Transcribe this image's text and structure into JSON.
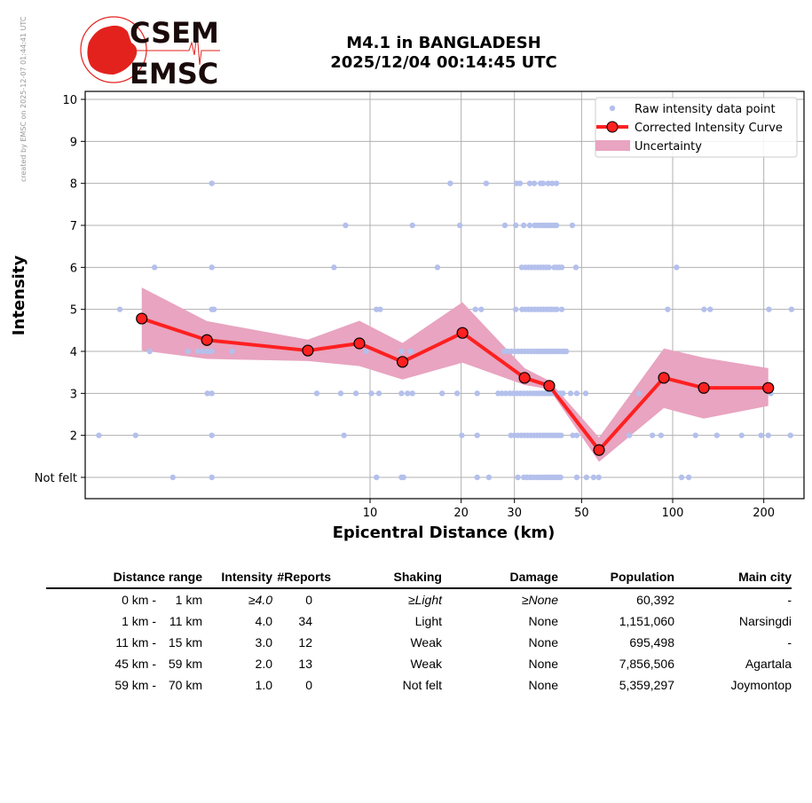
{
  "credit": "created by EMSC on 2025-12-07 01:44:41 UTC",
  "logo": {
    "line1": "CSEM",
    "line2": "EMSC"
  },
  "title": {
    "line1": "M4.1 in BANGLADESH",
    "line2": "2025/12/04 00:14:45 UTC"
  },
  "colors": {
    "raw": "#b4c0ec",
    "curve": "#ff2020",
    "uncertainty": "#e8a4c0",
    "logo": "#e3221e"
  },
  "chart_data": {
    "type": "line",
    "xlabel": "Epicentral Distance (km)",
    "ylabel": "Intensity",
    "xscale": "log",
    "xlim": [
      1.15,
      271
    ],
    "ylim": [
      0.5,
      10.2
    ],
    "xticks": [
      {
        "v": 10,
        "l": "10"
      },
      {
        "v": 20,
        "l": "20"
      },
      {
        "v": 30,
        "l": "30"
      },
      {
        "v": 50,
        "l": "50"
      },
      {
        "v": 100,
        "l": "100"
      },
      {
        "v": 200,
        "l": "200"
      }
    ],
    "yticks": [
      {
        "v": 1,
        "l": "Not felt"
      },
      {
        "v": 2,
        "l": "2"
      },
      {
        "v": 3,
        "l": "3"
      },
      {
        "v": 4,
        "l": "4"
      },
      {
        "v": 5,
        "l": "5"
      },
      {
        "v": 6,
        "l": "6"
      },
      {
        "v": 7,
        "l": "7"
      },
      {
        "v": 8,
        "l": "8"
      },
      {
        "v": 9,
        "l": "9"
      },
      {
        "v": 10,
        "l": "10"
      }
    ],
    "grid": true,
    "legend_position": "top-right",
    "legend": [
      "Raw intensity data point",
      "Corrected Intensity Curve",
      "Uncertainty"
    ],
    "raw_points": [
      {
        "intensity": 8,
        "distances": [
          3.0,
          18.4,
          24.2,
          30.5,
          31.3,
          33.7,
          34.9,
          36.6,
          37.3,
          38.8,
          40.0,
          41.3
        ]
      },
      {
        "intensity": 7,
        "distances": [
          8.3,
          13.8,
          19.8,
          27.9,
          30.3,
          32.2,
          33.7,
          35.0,
          35.8,
          36.6,
          37.4,
          38.2,
          39.0,
          39.8,
          40.6,
          41.3,
          46.6
        ]
      },
      {
        "intensity": 6,
        "distances": [
          1.94,
          3.0,
          7.6,
          16.7,
          31.7,
          32.6,
          33.4,
          34.2,
          35.0,
          35.8,
          36.6,
          37.4,
          38.2,
          39.0,
          40.6,
          41.4,
          42.2,
          43.0,
          47.9,
          103
        ]
      },
      {
        "intensity": 5,
        "distances": [
          1.49,
          3.0,
          3.05,
          10.5,
          10.8,
          22.3,
          23.3,
          30.3,
          31.8,
          32.6,
          33.4,
          34.2,
          35.0,
          35.8,
          36.6,
          37.4,
          38.2,
          39.0,
          39.8,
          40.6,
          41.4,
          43.0,
          96.3,
          127,
          133,
          208,
          247
        ]
      },
      {
        "intensity": 4,
        "distances": [
          1.87,
          2.5,
          2.7,
          2.8,
          2.9,
          3.0,
          3.5,
          9.7,
          12.7,
          13.6,
          27.7,
          28.5,
          29.3,
          30.1,
          30.9,
          31.7,
          32.5,
          33.3,
          34.1,
          34.9,
          35.7,
          36.5,
          37.3,
          38.1,
          38.9,
          39.7,
          40.5,
          41.3,
          42.1,
          42.9,
          43.7,
          44.5
        ]
      },
      {
        "intensity": 3,
        "distances": [
          2.9,
          3.0,
          6.67,
          8.0,
          8.98,
          10.1,
          10.7,
          12.7,
          13.3,
          13.8,
          17.3,
          19.4,
          22.6,
          26.5,
          27.3,
          28.1,
          29.0,
          29.8,
          30.6,
          31.4,
          32.2,
          33.0,
          33.8,
          34.6,
          35.4,
          36.2,
          37.0,
          37.8,
          38.6,
          39.4,
          40.2,
          41.0,
          41.8,
          42.6,
          43.4,
          46.0,
          48.2,
          51.6,
          77.4,
          211
        ]
      },
      {
        "intensity": 2,
        "distances": [
          1.27,
          1.68,
          3.0,
          8.2,
          20.1,
          22.6,
          29.2,
          30.0,
          30.8,
          31.6,
          32.4,
          33.2,
          34.0,
          34.8,
          35.6,
          36.4,
          37.2,
          38.0,
          38.8,
          39.6,
          40.4,
          41.2,
          42.0,
          42.8,
          46.8,
          48.2,
          71.9,
          85.7,
          91.5,
          119,
          140,
          169,
          196,
          207,
          245
        ]
      },
      {
        "intensity": 1,
        "distances": [
          2.23,
          3.0,
          10.5,
          12.7,
          12.9,
          22.6,
          24.7,
          30.8,
          32.2,
          33.0,
          33.8,
          34.6,
          35.4,
          36.2,
          37.0,
          37.8,
          38.6,
          39.4,
          40.2,
          41.0,
          41.8,
          42.6,
          48.2,
          51.9,
          54.8,
          57.0,
          107,
          113
        ]
      }
    ],
    "corrected_curve": [
      [
        1.76,
        4.78
      ],
      [
        2.89,
        4.27
      ],
      [
        6.23,
        4.02
      ],
      [
        9.22,
        4.19
      ],
      [
        12.8,
        3.75
      ],
      [
        20.2,
        4.44
      ],
      [
        32.4,
        3.37
      ],
      [
        39.1,
        3.18
      ],
      [
        57.1,
        1.65
      ],
      [
        93.5,
        3.37
      ],
      [
        126.7,
        3.13
      ],
      [
        207,
        3.13
      ]
    ],
    "uncertainty": {
      "upper": [
        5.52,
        4.72,
        4.28,
        4.73,
        4.2,
        5.17,
        3.6,
        3.3,
        1.95,
        4.07,
        3.85,
        3.6
      ],
      "lower": [
        4.02,
        3.82,
        3.77,
        3.65,
        3.33,
        3.73,
        3.2,
        3.1,
        1.37,
        2.65,
        2.4,
        2.7
      ]
    }
  },
  "table": {
    "headers": [
      "Distance range",
      "Intensity",
      "#Reports",
      "Shaking",
      "Damage",
      "Population",
      "Main city"
    ],
    "rows": [
      {
        "from": "0 km -",
        "to": "1 km",
        "intensity": "≥4.0",
        "reports": "0",
        "shaking": "≥Light",
        "damage": "≥None",
        "population": "60,392",
        "city": "-",
        "italic": true
      },
      {
        "from": "1 km -",
        "to": "11 km",
        "intensity": "4.0",
        "reports": "34",
        "shaking": "Light",
        "damage": "None",
        "population": "1,151,060",
        "city": "Narsingdi"
      },
      {
        "from": "11 km -",
        "to": "15 km",
        "intensity": "3.0",
        "reports": "12",
        "shaking": "Weak",
        "damage": "None",
        "population": "695,498",
        "city": "-"
      },
      {
        "from": "45 km -",
        "to": "59 km",
        "intensity": "2.0",
        "reports": "13",
        "shaking": "Weak",
        "damage": "None",
        "population": "7,856,506",
        "city": "Agartala"
      },
      {
        "from": "59 km -",
        "to": "70 km",
        "intensity": "1.0",
        "reports": "0",
        "shaking": "Not felt",
        "damage": "None",
        "population": "5,359,297",
        "city": "Joymontop"
      }
    ]
  }
}
